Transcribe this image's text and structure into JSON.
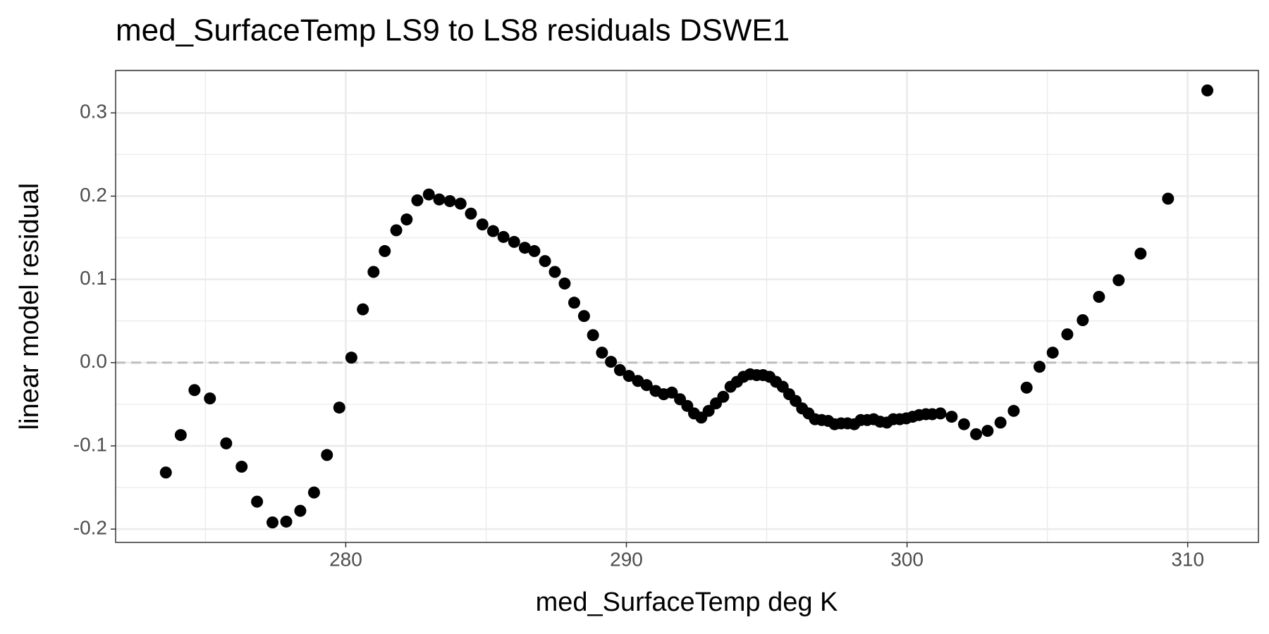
{
  "chart_data": {
    "type": "scatter",
    "title": "med_SurfaceTemp LS9 to LS8 residuals DSWE1",
    "x_label": "med_SurfaceTemp  deg K",
    "y_label": "linear model residual",
    "color": "#000000",
    "grid": true,
    "reference_line": 0,
    "xlim": [
      271.8,
      312.52
    ],
    "ylim": [
      -0.216,
      0.351
    ],
    "xticks": [
      280,
      290,
      300,
      310
    ],
    "yticks": [
      -0.2,
      -0.1,
      {
        "value": 0,
        "label": "0.0"
      },
      0.1,
      0.2,
      0.3
    ],
    "x": [
      273.59,
      274.12,
      274.61,
      275.16,
      275.74,
      276.29,
      276.84,
      277.39,
      277.88,
      278.38,
      278.87,
      279.33,
      279.77,
      280.2,
      280.61,
      280.99,
      281.39,
      281.8,
      282.17,
      282.55,
      282.96,
      283.33,
      283.71,
      284.09,
      284.46,
      284.87,
      285.25,
      285.62,
      286.0,
      286.38,
      286.72,
      287.1,
      287.45,
      287.8,
      288.14,
      288.49,
      288.81,
      289.13,
      289.45,
      289.77,
      290.09,
      290.41,
      290.72,
      291.04,
      291.33,
      291.62,
      291.91,
      292.17,
      292.41,
      292.67,
      292.93,
      293.19,
      293.45,
      293.71,
      293.94,
      294.17,
      294.41,
      294.64,
      294.87,
      295.1,
      295.33,
      295.57,
      295.8,
      296.03,
      296.26,
      296.49,
      296.72,
      296.96,
      297.19,
      297.42,
      297.65,
      297.88,
      298.12,
      298.35,
      298.58,
      298.81,
      299.04,
      299.28,
      299.51,
      299.74,
      299.97,
      300.2,
      300.43,
      300.67,
      300.9,
      301.19,
      301.59,
      302.03,
      302.46,
      302.87,
      303.33,
      303.8,
      304.26,
      304.72,
      305.19,
      305.71,
      306.26,
      306.84,
      307.54,
      308.32,
      309.3,
      310.7
    ],
    "values": [
      -0.132,
      -0.087,
      -0.033,
      -0.043,
      -0.097,
      -0.125,
      -0.167,
      -0.192,
      -0.191,
      -0.178,
      -0.156,
      -0.111,
      -0.054,
      0.006,
      0.064,
      0.109,
      0.134,
      0.159,
      0.172,
      0.195,
      0.202,
      0.196,
      0.194,
      0.191,
      0.179,
      0.166,
      0.158,
      0.151,
      0.145,
      0.138,
      0.134,
      0.122,
      0.109,
      0.095,
      0.072,
      0.056,
      0.033,
      0.012,
      0.001,
      -0.009,
      -0.016,
      -0.022,
      -0.027,
      -0.034,
      -0.038,
      -0.036,
      -0.044,
      -0.052,
      -0.061,
      -0.066,
      -0.058,
      -0.049,
      -0.041,
      -0.029,
      -0.023,
      -0.017,
      -0.014,
      -0.015,
      -0.015,
      -0.017,
      -0.023,
      -0.029,
      -0.038,
      -0.046,
      -0.055,
      -0.061,
      -0.068,
      -0.069,
      -0.07,
      -0.074,
      -0.073,
      -0.073,
      -0.074,
      -0.069,
      -0.069,
      -0.068,
      -0.071,
      -0.072,
      -0.068,
      -0.068,
      -0.067,
      -0.065,
      -0.063,
      -0.062,
      -0.062,
      -0.061,
      -0.065,
      -0.074,
      -0.086,
      -0.082,
      -0.072,
      -0.058,
      -0.03,
      -0.005,
      0.012,
      0.034,
      0.051,
      0.079,
      0.099,
      0.131,
      0.197,
      0.327
    ]
  }
}
